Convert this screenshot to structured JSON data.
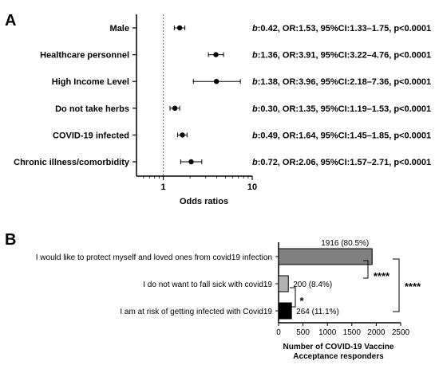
{
  "chart_data": [
    {
      "panel_label": "A",
      "type": "scatter",
      "xlabel": "Odds ratios",
      "x_scale": "log",
      "xlim": [
        0.5,
        10
      ],
      "x_ticks": [
        "1",
        "10"
      ],
      "reference_line": 1,
      "categories": [
        "Male",
        "Healthcare personnel",
        "High Income Level",
        "Do not take herbs",
        "COVID-19 infected",
        "Chronic illness/comorbidity"
      ],
      "or": [
        1.53,
        3.91,
        3.96,
        1.35,
        1.64,
        2.06
      ],
      "ci_low": [
        1.33,
        3.22,
        2.18,
        1.19,
        1.45,
        1.57
      ],
      "ci_high": [
        1.75,
        4.76,
        7.36,
        1.53,
        1.85,
        2.71
      ],
      "b_values": [
        "0.42",
        "1.36",
        "1.38",
        "0.30",
        "0.49",
        "0.72"
      ],
      "annotations": [
        ":0.42, OR:1.53, 95%CI:1.33–1.75, p<0.0001",
        ":1.36, OR:3.91, 95%CI:3.22–4.76, p<0.0001",
        ":1.38, OR:3.96, 95%CI:2.18–7.36, p<0.0001",
        ":0.30, OR:1.35, 95%CI:1.19–1.53, p<0.0001",
        ":0.49, OR:1.64, 95%CI:1.45–1.85, p<0.0001",
        ":0.72, OR:2.06, 95%CI:1.57–2.71, p<0.0001"
      ],
      "annotation_prefix": "b"
    },
    {
      "panel_label": "B",
      "type": "bar",
      "orientation": "horizontal",
      "categories": [
        "I would like to protect myself and loved ones from covid19 infection",
        "I do not want to fall sick with covid19",
        "I am at risk of getting infected with Covid19"
      ],
      "values": [
        1916,
        200,
        264
      ],
      "value_labels": [
        "1916 (80.5%)",
        "200 (8.4%)",
        "264 (11.1%)"
      ],
      "bar_colors": [
        "#808080",
        "#b3b3b3",
        "#000000"
      ],
      "xlabel_lines": [
        "Number of COVID-19 Vaccine",
        "Acceptance responders"
      ],
      "xlim": [
        0,
        2500
      ],
      "x_ticks": [
        0,
        500,
        1000,
        1500,
        2000,
        2500
      ],
      "significance": [
        {
          "between": [
            0,
            1
          ],
          "label": "****"
        },
        {
          "between": [
            1,
            2
          ],
          "label": "*"
        },
        {
          "between": [
            0,
            2
          ],
          "label": "****"
        }
      ]
    }
  ]
}
